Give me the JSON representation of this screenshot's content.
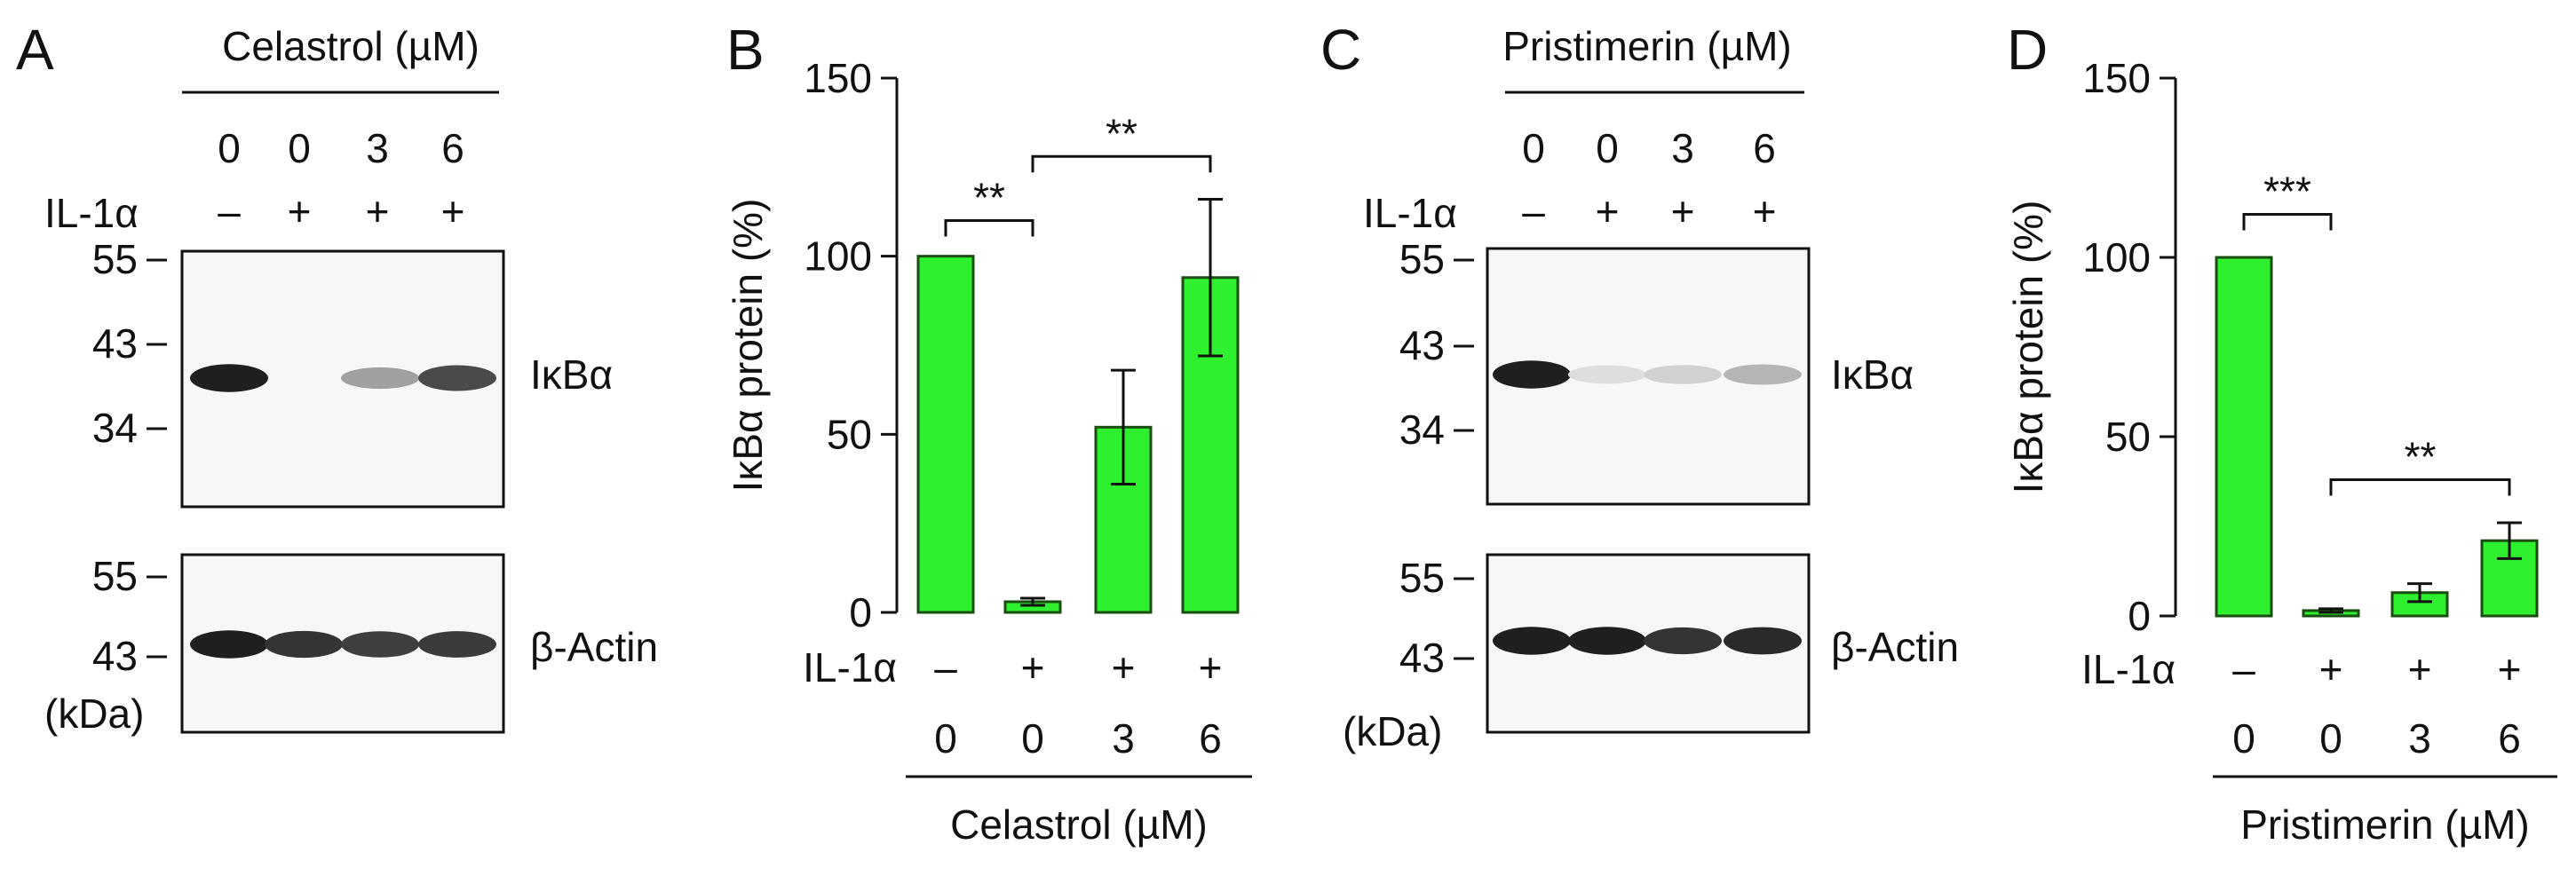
{
  "panels": {
    "A": {
      "letter": "A",
      "treatment_label": "Celastrol (µM)",
      "doses": [
        "0",
        "0",
        "3",
        "6"
      ],
      "stimulus_label": "IL-1α",
      "stimulus_marks": [
        "–",
        "+",
        "+",
        "+"
      ],
      "top_blot": {
        "markers": [
          "55",
          "43",
          "34"
        ],
        "target": "IκBα",
        "band_intensity": [
          0.95,
          0.0,
          0.35,
          0.75
        ]
      },
      "bottom_blot": {
        "markers": [
          "55",
          "43"
        ],
        "target": "β-Actin",
        "band_intensity": [
          0.95,
          0.85,
          0.8,
          0.82
        ]
      },
      "unit_label": "(kDa)"
    },
    "B": {
      "letter": "B"
    },
    "C": {
      "letter": "C",
      "treatment_label": "Pristimerin (µM)",
      "doses": [
        "0",
        "0",
        "3",
        "6"
      ],
      "stimulus_label": "IL-1α",
      "stimulus_marks": [
        "–",
        "+",
        "+",
        "+"
      ],
      "top_blot": {
        "markers": [
          "55",
          "43",
          "34"
        ],
        "target": "IκBα",
        "band_intensity": [
          0.95,
          0.06,
          0.12,
          0.25
        ]
      },
      "bottom_blot": {
        "markers": [
          "55",
          "43"
        ],
        "target": "β-Actin",
        "band_intensity": [
          0.95,
          0.95,
          0.85,
          0.9
        ]
      },
      "unit_label": "(kDa)"
    },
    "D": {
      "letter": "D"
    }
  },
  "chart_data": [
    {
      "panel": "B",
      "type": "bar",
      "categories": [
        "–/0",
        "+/0",
        "+/3",
        "+/6"
      ],
      "stimulus_label": "IL-1α",
      "stimulus_marks": [
        "–",
        "+",
        "+",
        "+"
      ],
      "doses": [
        "0",
        "0",
        "3",
        "6"
      ],
      "values": [
        100,
        3,
        52,
        94
      ],
      "errors": [
        0,
        1,
        16,
        22
      ],
      "ylabel": "IκBα protein (%)",
      "xlabel": "Celastrol (µM)",
      "ylim": [
        0,
        150
      ],
      "yticks": [
        "0",
        "50",
        "100",
        "150"
      ],
      "bar_color": "#2ef02e",
      "significance": [
        {
          "from": 0,
          "to": 1,
          "label": "**",
          "level": 110
        },
        {
          "from": 1,
          "to": 3,
          "label": "**",
          "level": 128
        }
      ]
    },
    {
      "panel": "D",
      "type": "bar",
      "categories": [
        "–/0",
        "+/0",
        "+/3",
        "+/6"
      ],
      "stimulus_label": "IL-1α",
      "stimulus_marks": [
        "–",
        "+",
        "+",
        "+"
      ],
      "doses": [
        "0",
        "0",
        "3",
        "6"
      ],
      "values": [
        100,
        1.5,
        6.5,
        21
      ],
      "errors": [
        0,
        0.5,
        2.5,
        5
      ],
      "ylabel": "IκBα protein (%)",
      "xlabel": "Pristimerin (µM)",
      "ylim": [
        0,
        150
      ],
      "yticks": [
        "0",
        "50",
        "100",
        "150"
      ],
      "bar_color": "#2ef02e",
      "significance": [
        {
          "from": 0,
          "to": 1,
          "label": "***",
          "level": 112
        },
        {
          "from": 1,
          "to": 3,
          "label": "**",
          "level": 38
        }
      ]
    }
  ]
}
